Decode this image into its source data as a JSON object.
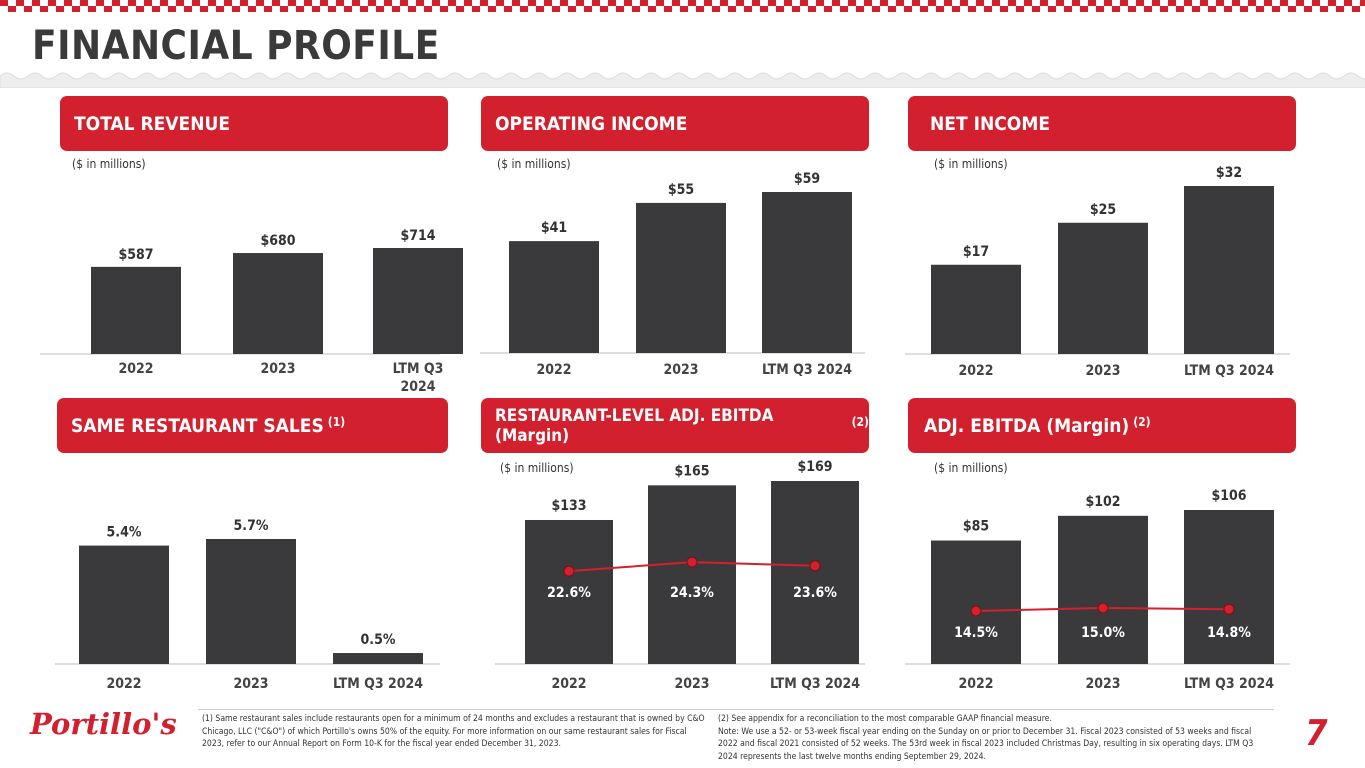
{
  "title": "FINANCIAL PROFILE",
  "page_number": "7",
  "logo_text": "Portillo's",
  "colors": {
    "brand_red": "#d2202e",
    "bar": "#3a3a3c",
    "title": "#3a3a3a"
  },
  "panels": [
    {
      "heading": "TOTAL REVENUE",
      "heading_note": "",
      "unit": "($ in millions)"
    },
    {
      "heading": "OPERATING INCOME",
      "heading_note": "",
      "unit": "($ in millions)"
    },
    {
      "heading": "NET INCOME",
      "heading_note": "",
      "unit": "($ in millions)"
    },
    {
      "heading": "SAME RESTAURANT SALES",
      "heading_note": "(1)",
      "unit": ""
    },
    {
      "heading": "RESTAURANT-LEVEL ADJ. EBITDA (Margin)",
      "heading_note": "(2)",
      "unit": "($ in millions)"
    },
    {
      "heading": "ADJ. EBITDA (Margin)",
      "heading_note": "(2)",
      "unit": "($ in millions)"
    }
  ],
  "chart_data": [
    {
      "type": "bar",
      "categories": [
        "2022",
        "2023",
        "LTM Q3 2024"
      ],
      "values": [
        587,
        680,
        714
      ],
      "labels": [
        "$587",
        "$680",
        "$714"
      ]
    },
    {
      "type": "bar",
      "categories": [
        "2022",
        "2023",
        "LTM Q3 2024"
      ],
      "values": [
        41,
        55,
        59
      ],
      "labels": [
        "$41",
        "$55",
        "$59"
      ]
    },
    {
      "type": "bar",
      "categories": [
        "2022",
        "2023",
        "LTM Q3 2024"
      ],
      "values": [
        17,
        25,
        32
      ],
      "labels": [
        "$17",
        "$25",
        "$32"
      ]
    },
    {
      "type": "bar",
      "categories": [
        "2022",
        "2023",
        "LTM Q3 2024"
      ],
      "values": [
        5.4,
        5.7,
        0.5
      ],
      "labels": [
        "5.4%",
        "5.7%",
        "0.5%"
      ]
    },
    {
      "type": "bar",
      "categories": [
        "2022",
        "2023",
        "LTM Q3 2024"
      ],
      "values": [
        133,
        165,
        169
      ],
      "labels": [
        "$133",
        "$165",
        "$169"
      ],
      "margin_values": [
        22.6,
        24.3,
        23.6
      ],
      "margin_labels": [
        "22.6%",
        "24.3%",
        "23.6%"
      ]
    },
    {
      "type": "bar",
      "categories": [
        "2022",
        "2023",
        "LTM Q3 2024"
      ],
      "values": [
        85,
        102,
        106
      ],
      "labels": [
        "$85",
        "$102",
        "$106"
      ],
      "margin_values": [
        14.5,
        15.0,
        14.8
      ],
      "margin_labels": [
        "14.5%",
        "15.0%",
        "14.8%"
      ]
    }
  ],
  "footnotes": {
    "left": "(1) Same restaurant sales include restaurants open for a minimum of 24 months and excludes a restaurant that is owned by C&O Chicago, LLC (\"C&O\") of which Portillo's owns 50% of the equity. For more information on our same restaurant sales for Fiscal 2023, refer to our Annual Report on Form 10-K for the fiscal year ended December 31, 2023.",
    "right_1": "(2) See appendix for a reconciliation to the most comparable GAAP financial measure.",
    "right_2": "Note: We use a 52- or 53-week fiscal year ending on the Sunday on or prior to December 31. Fiscal 2023 consisted of 53 weeks and fiscal 2022 and fiscal 2021 consisted of 52 weeks. The 53rd week in fiscal 2023 included Christmas Day, resulting in six operating days. LTM Q3 2024 represents the last twelve months ending September 29, 2024."
  }
}
